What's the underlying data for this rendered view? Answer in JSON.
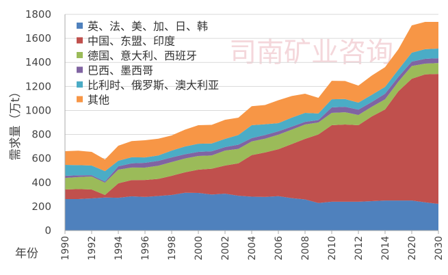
{
  "chart_data": {
    "type": "area",
    "stacked": true,
    "title": "",
    "xlabel": "年份",
    "ylabel": "需求量（万t）",
    "ylim": [
      0,
      1800
    ],
    "yticks": [
      0,
      200,
      400,
      600,
      800,
      1000,
      1200,
      1400,
      1600,
      1800
    ],
    "grid": true,
    "legend": "top-left",
    "watermark": "司南矿业咨询",
    "categories": [
      "1990",
      "1991",
      "1992",
      "1993",
      "1994",
      "1995",
      "1996",
      "1997",
      "1998",
      "1999",
      "2000",
      "2001",
      "2002",
      "2003",
      "2004",
      "2005",
      "2006",
      "2007",
      "2008",
      "2009",
      "2010",
      "2011",
      "2012",
      "2013",
      "2014",
      "2015",
      "2020",
      "2025",
      "2030"
    ],
    "xtick_labels": [
      "1990",
      "1992",
      "1994",
      "1996",
      "1998",
      "2000",
      "2002",
      "2004",
      "2006",
      "2008",
      "2010",
      "2012",
      "2014",
      "2020",
      "2030"
    ],
    "series": [
      {
        "name": "英、法、美、加、日、韩",
        "color": "#4f81bd",
        "values": [
          262,
          262,
          268,
          275,
          273,
          285,
          280,
          288,
          296,
          315,
          313,
          300,
          307,
          290,
          282,
          280,
          286,
          270,
          259,
          229,
          240,
          240,
          240,
          245,
          250,
          250,
          250,
          235,
          222
        ]
      },
      {
        "name": "中国、东盟、印度",
        "color": "#c0504d",
        "values": [
          80,
          83,
          74,
          21,
          120,
          135,
          141,
          142,
          160,
          170,
          194,
          215,
          234,
          270,
          346,
          370,
          391,
          450,
          504,
          571,
          637,
          643,
          637,
          705,
          758,
          910,
          1014,
          1065,
          1082
        ]
      },
      {
        "name": "德国、意大利、西班牙",
        "color": "#9bbb59",
        "values": [
          96,
          100,
          108,
          103,
          114,
          105,
          103,
          110,
          114,
          115,
          114,
          110,
          125,
          120,
          114,
          115,
          121,
          120,
          120,
          100,
          103,
          102,
          85,
          80,
          85,
          80,
          106,
          90,
          91
        ]
      },
      {
        "name": "巴西、墨西哥",
        "color": "#8064a2",
        "values": [
          18,
          15,
          11,
          9,
          28,
          35,
          40,
          40,
          39,
          35,
          34,
          35,
          29,
          35,
          28,
          30,
          29,
          25,
          22,
          20,
          45,
          45,
          45,
          40,
          46,
          40,
          36,
          40,
          40
        ]
      },
      {
        "name": "比利时、俄罗斯、澳大利亚",
        "color": "#4bacc6",
        "values": [
          91,
          85,
          80,
          87,
          46,
          50,
          45,
          45,
          57,
          65,
          68,
          65,
          68,
          80,
          107,
          90,
          67,
          75,
          75,
          55,
          68,
          65,
          58,
          60,
          57,
          60,
          75,
          80,
          80
        ]
      },
      {
        "name": "其他",
        "color": "#f79646",
        "values": [
          114,
          120,
          114,
          97,
          125,
          135,
          143,
          140,
          126,
          140,
          154,
          155,
          159,
          145,
          158,
          160,
          191,
          180,
          159,
          130,
          154,
          150,
          142,
          160,
          165,
          170,
          227,
          227,
          222
        ]
      }
    ]
  }
}
